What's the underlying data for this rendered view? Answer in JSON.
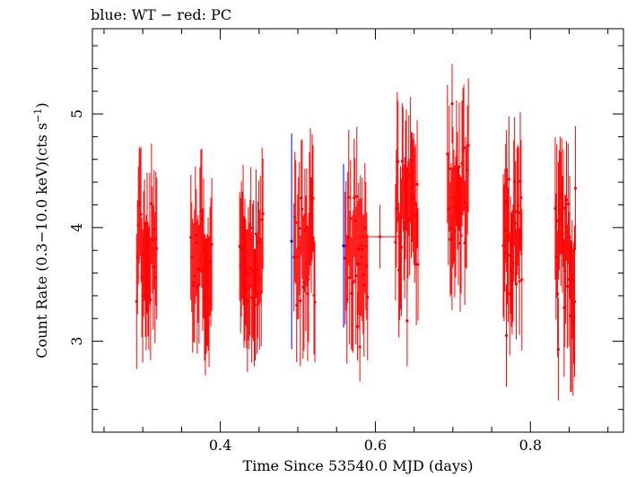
{
  "chart_data": {
    "type": "scatter",
    "title": "blue: WT − red: PC",
    "xlabel": "Time Since 53540.0 MJD (days)",
    "ylabel_main": "Count Rate (0.3−10.0 keV)(cts s",
    "ylabel_sup": "−1",
    "ylabel_close": ")",
    "xlim": [
      0.235,
      0.92
    ],
    "ylim": [
      2.2,
      5.75
    ],
    "xticks": [
      0.4,
      0.6,
      0.8
    ],
    "xtick_labels": [
      "0.4",
      "0.6",
      "0.8"
    ],
    "yticks": [
      3,
      4,
      5
    ],
    "ytick_labels": [
      "3",
      "4",
      "5"
    ],
    "grid": false,
    "colors": {
      "WT": "#0000ff",
      "PC": "#ff0000"
    },
    "series": [
      {
        "name": "WT",
        "points": [
          {
            "x": 0.492,
            "y": 3.88,
            "err": 0.95
          },
          {
            "x": 0.559,
            "y": 3.84,
            "err": 0.72
          }
        ]
      },
      {
        "name": "PC",
        "clusters": [
          {
            "x_start": 0.292,
            "x_end": 0.318,
            "n": 24,
            "y_center": 3.8,
            "y_spread": 0.45,
            "err": 0.55
          },
          {
            "x_start": 0.362,
            "x_end": 0.389,
            "n": 24,
            "y_center": 3.75,
            "y_spread": 0.45,
            "err": 0.55
          },
          {
            "x_start": 0.425,
            "x_end": 0.455,
            "n": 28,
            "y_center": 3.7,
            "y_spread": 0.5,
            "err": 0.55
          },
          {
            "x_start": 0.495,
            "x_end": 0.522,
            "n": 24,
            "y_center": 3.8,
            "y_spread": 0.5,
            "err": 0.55
          },
          {
            "x_start": 0.561,
            "x_end": 0.59,
            "n": 26,
            "y_center": 3.85,
            "y_spread": 0.5,
            "err": 0.55
          },
          {
            "x_start": 0.626,
            "x_end": 0.655,
            "n": 28,
            "y_center": 4.1,
            "y_spread": 0.5,
            "err": 0.55
          },
          {
            "x_start": 0.693,
            "x_end": 0.72,
            "n": 24,
            "y_center": 4.3,
            "y_spread": 0.45,
            "err": 0.55
          },
          {
            "x_start": 0.765,
            "x_end": 0.789,
            "n": 24,
            "y_center": 3.95,
            "y_spread": 0.55,
            "err": 0.55
          },
          {
            "x_start": 0.832,
            "x_end": 0.858,
            "n": 26,
            "y_center": 3.75,
            "y_spread": 0.6,
            "err": 0.6
          }
        ],
        "points": [
          {
            "x": 0.606,
            "y": 3.92,
            "xerr": 0.028,
            "err": 0.28
          },
          {
            "x": 0.577,
            "y": 3.13,
            "err": 0.3
          },
          {
            "x": 0.58,
            "y": 2.95,
            "err": 0.3
          },
          {
            "x": 0.699,
            "y": 5.09,
            "err": 0.35
          },
          {
            "x": 0.641,
            "y": 3.18,
            "err": 0.4
          },
          {
            "x": 0.769,
            "y": 3.05,
            "err": 0.45
          },
          {
            "x": 0.836,
            "y": 2.93,
            "err": 0.45
          },
          {
            "x": 0.856,
            "y": 3.2,
            "err": 0.4
          }
        ]
      }
    ]
  }
}
